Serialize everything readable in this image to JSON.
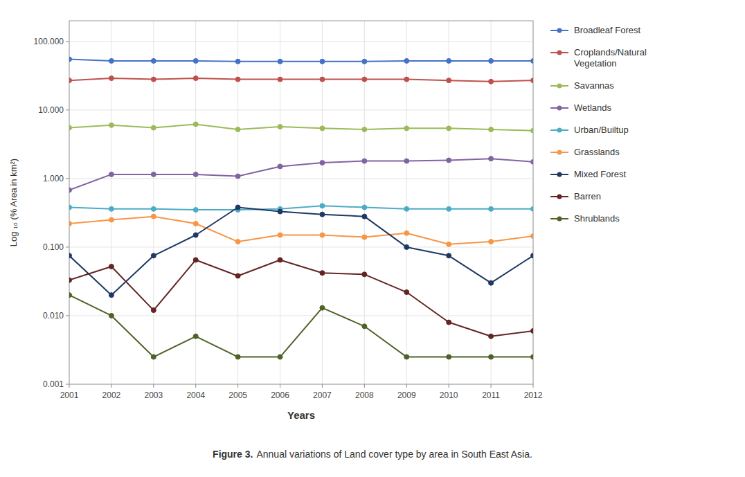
{
  "chart_data": {
    "type": "line",
    "x": [
      2001,
      2002,
      2003,
      2004,
      2005,
      2006,
      2007,
      2008,
      2009,
      2010,
      2011,
      2012
    ],
    "series": [
      {
        "name": "Broadleaf Forest",
        "color": "#4472C4",
        "values": [
          55,
          52,
          52,
          52,
          51,
          51,
          51,
          51,
          52,
          52,
          52,
          52
        ]
      },
      {
        "name": "Croplands/Natural\nVegetation",
        "color": "#C0504D",
        "values": [
          27,
          29,
          28,
          29,
          28,
          28,
          28,
          28,
          28,
          27,
          26,
          27
        ]
      },
      {
        "name": "Savannas",
        "color": "#9BBB59",
        "values": [
          5.5,
          6.0,
          5.5,
          6.2,
          5.2,
          5.7,
          5.4,
          5.2,
          5.4,
          5.4,
          5.2,
          5.0
        ]
      },
      {
        "name": "Wetlands",
        "color": "#8064A2",
        "values": [
          0.68,
          1.15,
          1.15,
          1.15,
          1.08,
          1.5,
          1.7,
          1.8,
          1.8,
          1.85,
          1.95,
          1.75
        ]
      },
      {
        "name": "Urban/Builtup",
        "color": "#4BACC6",
        "values": [
          0.38,
          0.36,
          0.36,
          0.35,
          0.35,
          0.36,
          0.4,
          0.38,
          0.36,
          0.36,
          0.36,
          0.36
        ]
      },
      {
        "name": "Grasslands",
        "color": "#F79646",
        "values": [
          0.22,
          0.25,
          0.28,
          0.22,
          0.12,
          0.15,
          0.15,
          0.14,
          0.16,
          0.11,
          0.12,
          0.145
        ]
      },
      {
        "name": "Mixed Forest",
        "color": "#1F3864",
        "values": [
          0.075,
          0.02,
          0.075,
          0.15,
          0.38,
          0.33,
          0.3,
          0.28,
          0.1,
          0.075,
          0.03,
          0.075
        ]
      },
      {
        "name": "Barren",
        "color": "#632523",
        "values": [
          0.033,
          0.052,
          0.012,
          0.065,
          0.038,
          0.065,
          0.042,
          0.04,
          0.022,
          0.008,
          0.005,
          0.006
        ]
      },
      {
        "name": "Shrublands",
        "color": "#4F6228",
        "values": [
          0.02,
          0.01,
          0.0025,
          0.005,
          0.0025,
          0.0025,
          0.013,
          0.007,
          0.0025,
          0.0025,
          0.0025,
          0.0025
        ]
      }
    ],
    "x_label": "Years",
    "y_label": "Log ₁₀ (% Area in km²)",
    "xlim": [
      2001,
      2012
    ],
    "xticks": [
      2001,
      2002,
      2003,
      2004,
      2005,
      2006,
      2007,
      2008,
      2009,
      2010,
      2011,
      2012
    ],
    "ylim": [
      0.001,
      200
    ],
    "yticks": [
      0.001,
      {
        "value": 0.01,
        "label": "0.010"
      },
      {
        "value": 0.1,
        "label": "0.100"
      },
      {
        "value": 1,
        "label": "1.000"
      },
      {
        "value": 10,
        "label": "10.000"
      },
      {
        "value": 100,
        "label": "100.000"
      }
    ],
    "log": "y",
    "grid": true,
    "legend": "right",
    "marker": "circle",
    "annotations": [
      "Figure 3.",
      "Annual variations of Land cover type by area in South East Asia."
    ]
  }
}
